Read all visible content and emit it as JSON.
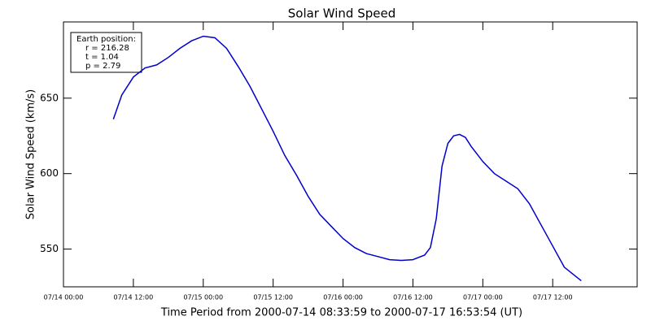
{
  "chart_data": {
    "type": "line",
    "title": "Solar Wind Speed",
    "y_label": "Solar Wind Speed (km/s)",
    "x_label": "Time Period from 2000-07-14 08:33:59 to 2000-07-17 16:53:54 (UT)",
    "annotations": [
      "Earth position:",
      "r = 216.28",
      "t = 1.04",
      "p = 2.79"
    ],
    "x": [
      "07/14 08:34",
      "07/14 10:00",
      "07/14 12:00",
      "07/14 14:00",
      "07/14 16:00",
      "07/14 18:00",
      "07/14 20:00",
      "07/14 22:00",
      "07/15 00:00",
      "07/15 02:00",
      "07/15 04:00",
      "07/15 06:00",
      "07/15 08:00",
      "07/15 10:00",
      "07/15 12:00",
      "07/15 14:00",
      "07/15 16:00",
      "07/15 18:00",
      "07/15 20:00",
      "07/15 22:00",
      "07/16 00:00",
      "07/16 02:00",
      "07/16 04:00",
      "07/16 06:00",
      "07/16 08:00",
      "07/16 10:00",
      "07/16 12:00",
      "07/16 14:00",
      "07/16 15:00",
      "07/16 16:00",
      "07/16 17:00",
      "07/16 18:00",
      "07/16 19:00",
      "07/16 20:00",
      "07/16 21:00",
      "07/16 22:00",
      "07/17 00:00",
      "07/17 02:00",
      "07/17 04:00",
      "07/17 06:00",
      "07/17 08:00",
      "07/17 10:00",
      "07/17 12:00",
      "07/17 14:00",
      "07/17 16:54"
    ],
    "series": [
      {
        "name": "Solar Wind Speed",
        "color": "#0000cc",
        "values": [
          636,
          652,
          664,
          670,
          672,
          677,
          683,
          688,
          691,
          690,
          683,
          671,
          658,
          643,
          628,
          612,
          599,
          585,
          573,
          565,
          557,
          551,
          547,
          545,
          543,
          542.5,
          543,
          546,
          551,
          570,
          605,
          620,
          625,
          626,
          624,
          618,
          608,
          600,
          595,
          590,
          580,
          566,
          552,
          538,
          529
        ]
      }
    ],
    "xlim": [
      "07/14 00:00",
      "07/18 02:30"
    ],
    "xticks": [
      "07/14 00:00",
      "07/14 12:00",
      "07/15 00:00",
      "07/15 12:00",
      "07/16 00:00",
      "07/16 12:00",
      "07/17 00:00",
      "07/17 12:00"
    ],
    "ylim": [
      525,
      700.5
    ],
    "yticks": [
      550,
      600,
      650
    ]
  }
}
